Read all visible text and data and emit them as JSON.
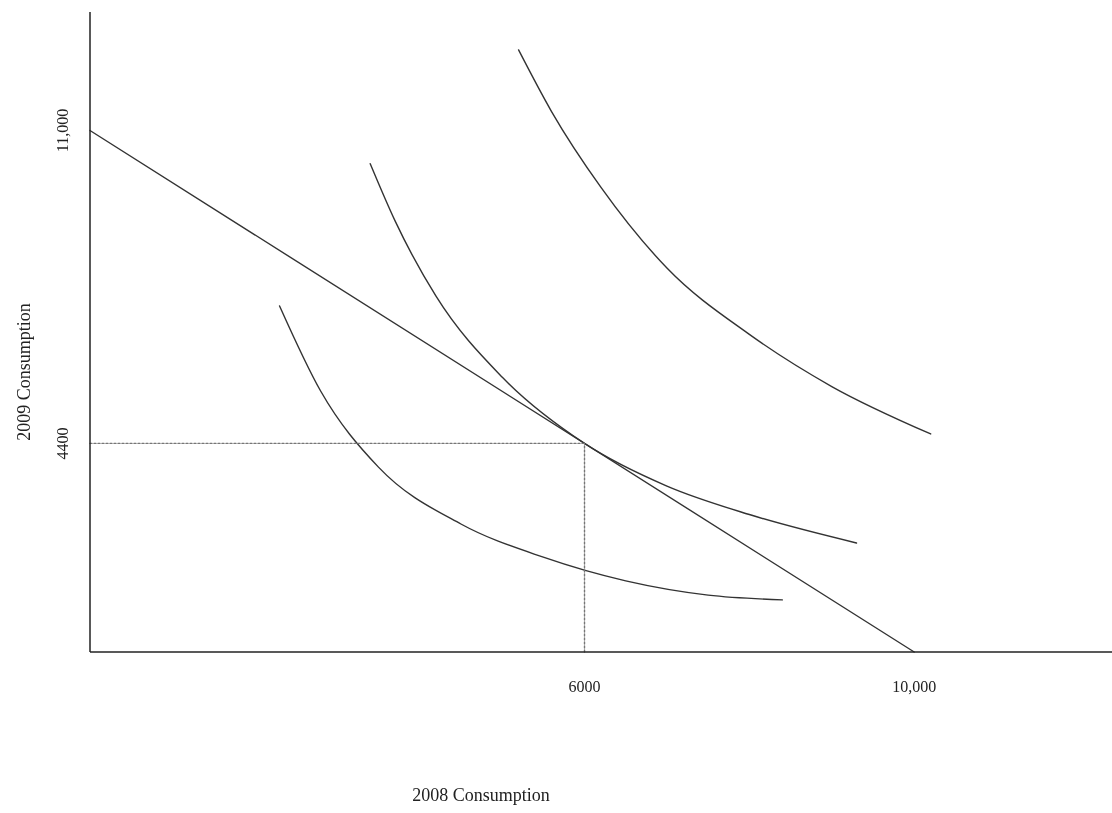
{
  "chart_data": {
    "type": "line",
    "xlabel": "2008 Consumption",
    "ylabel": "2009 Consumption",
    "xlim": [
      0,
      12400
    ],
    "ylim": [
      0,
      13500
    ],
    "xticks": [
      {
        "value": 6000,
        "label": "6000"
      },
      {
        "value": 10000,
        "label": "10,000"
      }
    ],
    "yticks": [
      {
        "value": 4400,
        "label": "4400"
      },
      {
        "value": 11000,
        "label": "11,000"
      }
    ],
    "grid": false,
    "marker": "none",
    "series": [
      {
        "color": "#333333",
        "x": [
          0,
          10000
        ],
        "values": [
          11000,
          0
        ]
      },
      {
        "color": "#333333",
        "x": [
          2300,
          2800,
          3500,
          4500,
          5500,
          6500,
          7500,
          8400
        ],
        "values": [
          7300,
          5500,
          3900,
          2700,
          2000,
          1500,
          1200,
          1100
        ]
      },
      {
        "color": "#333333",
        "x": [
          3400,
          3700,
          4200,
          5000,
          6000,
          7000,
          8000,
          9300
        ],
        "values": [
          10300,
          9100,
          7500,
          5800,
          4400,
          3500,
          2900,
          2300
        ]
      },
      {
        "color": "#333333",
        "x": [
          5200,
          5600,
          6200,
          7000,
          8000,
          9000,
          10200
        ],
        "values": [
          12700,
          11400,
          9800,
          8100,
          6700,
          5600,
          4600
        ]
      },
      {
        "color": "#777777",
        "line_style": "dotted",
        "x": [
          0,
          6000
        ],
        "values": [
          4400,
          4400
        ]
      },
      {
        "color": "#777777",
        "line_style": "dotted",
        "x": [
          6000,
          6000
        ],
        "values": [
          0,
          4400
        ]
      }
    ]
  }
}
